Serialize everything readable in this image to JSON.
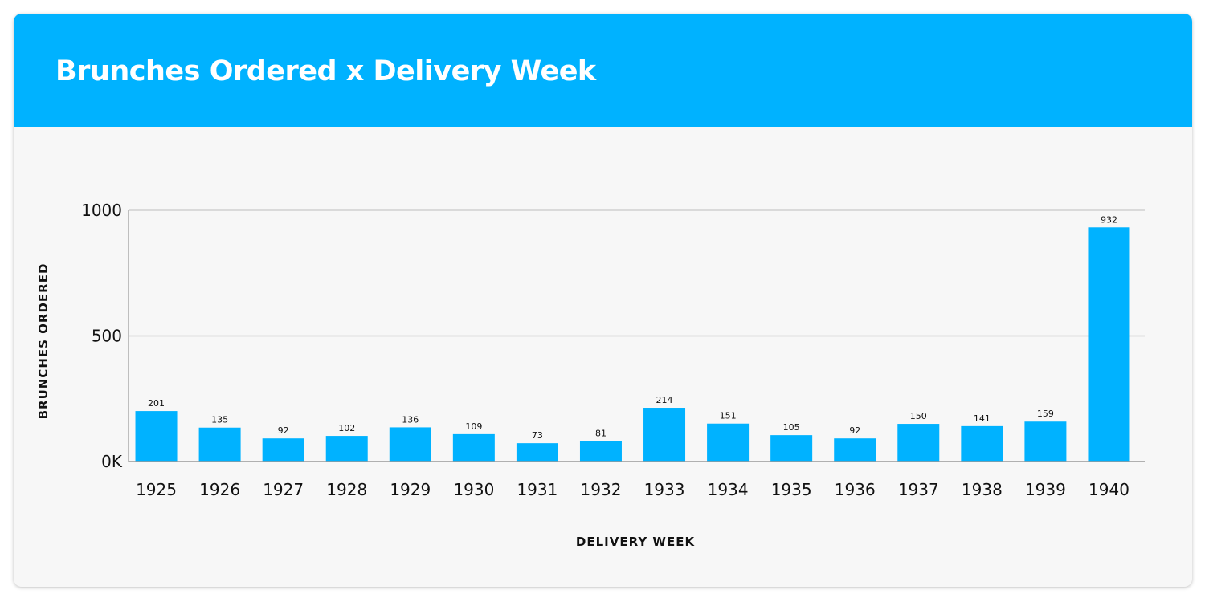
{
  "chart_data": {
    "type": "bar",
    "title": "Brunches Ordered x Delivery Week",
    "xlabel": "DELIVERY WEEK",
    "ylabel": "BRUNCHES ORDERED",
    "categories": [
      "1925",
      "1926",
      "1927",
      "1928",
      "1929",
      "1930",
      "1931",
      "1932",
      "1933",
      "1934",
      "1935",
      "1936",
      "1937",
      "1938",
      "1939",
      "1940"
    ],
    "values": [
      201,
      135,
      92,
      102,
      136,
      109,
      73,
      81,
      214,
      151,
      105,
      92,
      150,
      141,
      159,
      932
    ],
    "ylim": [
      0,
      1000
    ],
    "yticks": [
      {
        "value": 0,
        "label": "0K"
      },
      {
        "value": 500,
        "label": "500"
      },
      {
        "value": 1000,
        "label": "1000"
      }
    ],
    "grid": true,
    "data_labels": true,
    "colors": {
      "bar": "#00b2ff",
      "header": "#00b2ff",
      "background": "#f7f7f7"
    }
  }
}
